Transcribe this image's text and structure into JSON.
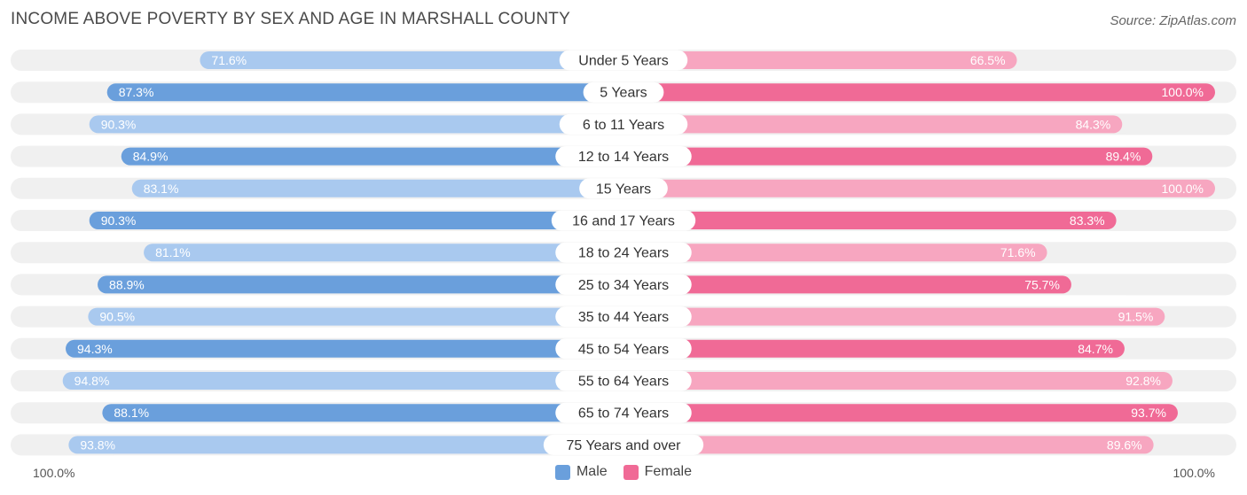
{
  "header": {
    "title": "INCOME ABOVE POVERTY BY SEX AND AGE IN MARSHALL COUNTY",
    "source": "Source: ZipAtlas.com"
  },
  "colors": {
    "male_strong": "#6a9fdc",
    "male_light": "#a9c9ef",
    "female_strong": "#f06a96",
    "female_light": "#f7a6c0",
    "track": "#f0f0f0"
  },
  "chart_data": {
    "type": "bar",
    "orientation": "horizontal-diverging",
    "title": "INCOME ABOVE POVERTY BY SEX AND AGE IN MARSHALL COUNTY",
    "categories": [
      "Under 5 Years",
      "5 Years",
      "6 to 11 Years",
      "12 to 14 Years",
      "15 Years",
      "16 and 17 Years",
      "18 to 24 Years",
      "25 to 34 Years",
      "35 to 44 Years",
      "45 to 54 Years",
      "55 to 64 Years",
      "65 to 74 Years",
      "75 Years and over"
    ],
    "series": [
      {
        "name": "Male",
        "values": [
          71.6,
          87.3,
          90.3,
          84.9,
          83.1,
          90.3,
          81.1,
          88.9,
          90.5,
          94.3,
          94.8,
          88.1,
          93.8
        ]
      },
      {
        "name": "Female",
        "values": [
          66.5,
          100.0,
          84.3,
          89.4,
          100.0,
          83.3,
          71.6,
          75.7,
          91.5,
          84.7,
          92.8,
          93.7,
          89.6
        ]
      }
    ],
    "value_labels": {
      "male": [
        "71.6%",
        "87.3%",
        "90.3%",
        "84.9%",
        "83.1%",
        "90.3%",
        "81.1%",
        "88.9%",
        "90.5%",
        "94.3%",
        "94.8%",
        "88.1%",
        "93.8%"
      ],
      "female": [
        "66.5%",
        "100.0%",
        "84.3%",
        "89.4%",
        "100.0%",
        "83.3%",
        "71.6%",
        "75.7%",
        "91.5%",
        "84.7%",
        "92.8%",
        "93.7%",
        "89.6%"
      ]
    },
    "xlim": [
      0,
      100
    ],
    "axis_labels": {
      "left": "100.0%",
      "right": "100.0%"
    },
    "legend": {
      "position": "bottom-center",
      "items": [
        "Male",
        "Female"
      ]
    }
  }
}
